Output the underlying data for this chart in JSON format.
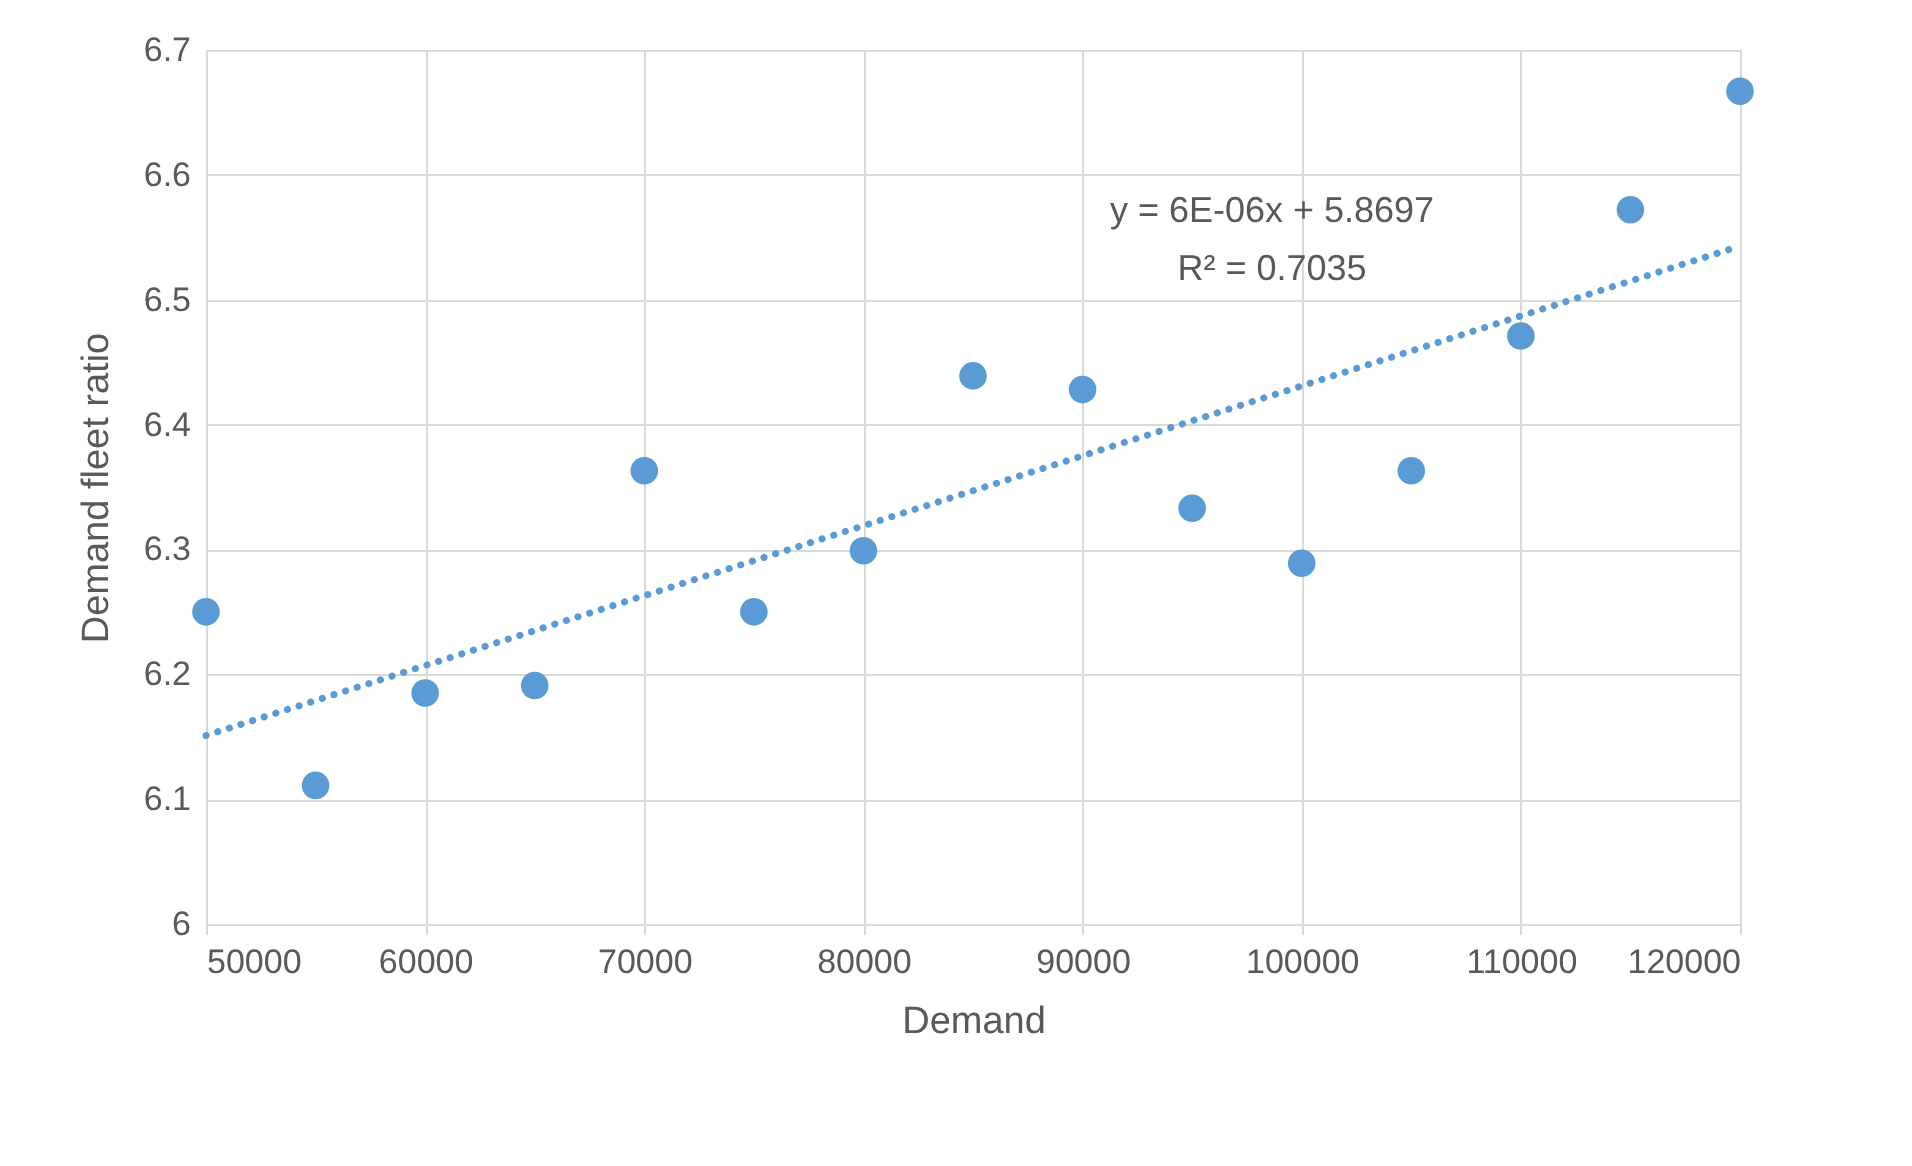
{
  "chart_data": {
    "type": "scatter",
    "xlabel": "Demand",
    "ylabel": "Demand fleet ratio",
    "x": [
      50000,
      55000,
      60000,
      65000,
      70000,
      75000,
      80000,
      85000,
      90000,
      95000,
      100000,
      105000,
      110000,
      115000,
      120000
    ],
    "series": [
      {
        "color": "#5b9bd5",
        "marker": "circle",
        "values": [
          6.25,
          6.111,
          6.185,
          6.191,
          6.363,
          6.25,
          6.299,
          6.439,
          6.428,
          6.333,
          6.289,
          6.363,
          6.471,
          6.572,
          6.667
        ]
      },
      {
        "type": "line",
        "color": "#5b9bd5",
        "line_style": "dotted",
        "x": [
          50000,
          120000
        ],
        "values": [
          6.151,
          6.543
        ]
      }
    ],
    "annotations": [
      "y = 6E-06x + 5.8697",
      "R² = 0.7035"
    ],
    "xlim": [
      50000,
      120000
    ],
    "xticks": [
      50000,
      60000,
      70000,
      80000,
      90000,
      100000,
      110000,
      120000
    ],
    "ylim": [
      6,
      6.7
    ],
    "yticks": [
      6,
      6.1,
      6.2,
      6.3,
      6.4,
      6.5,
      6.6,
      6.7
    ],
    "grid": true
  }
}
